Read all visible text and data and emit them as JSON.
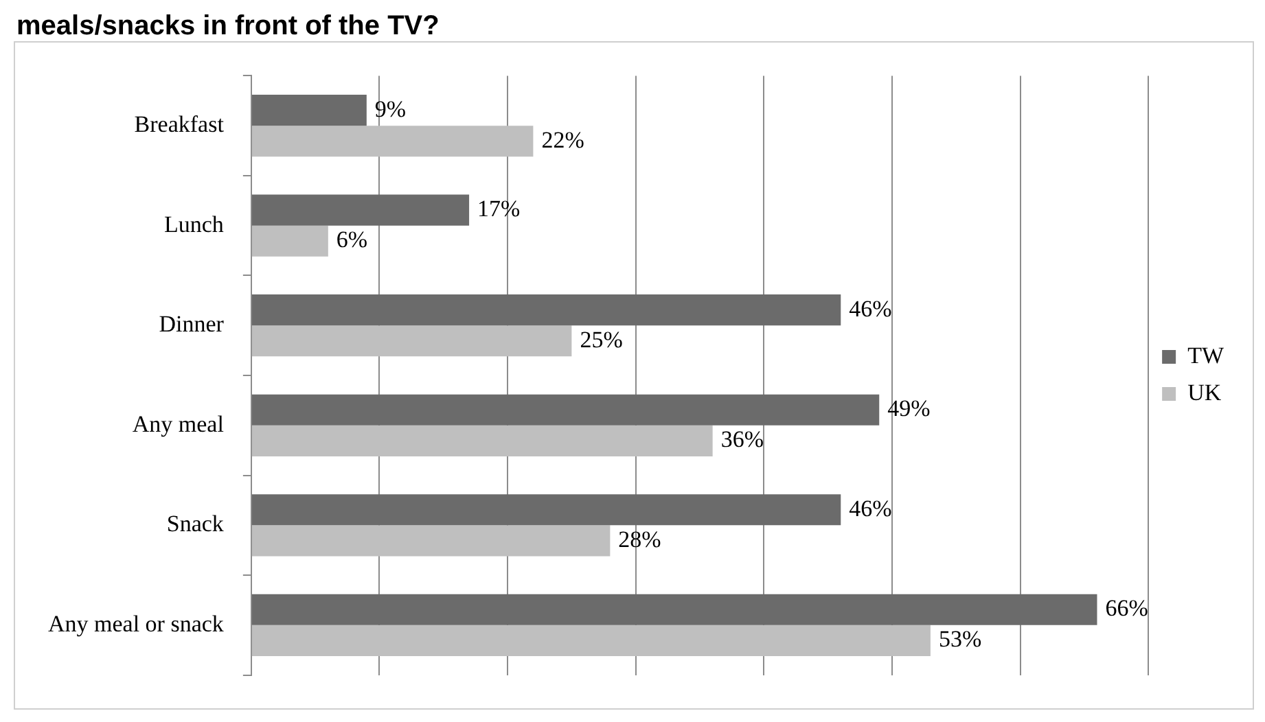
{
  "chart_data": {
    "type": "bar",
    "orientation": "horizontal",
    "title": "meals/snacks in front of the TV?",
    "categories": [
      "Breakfast",
      "Lunch",
      "Dinner",
      "Any meal",
      "Snack",
      "Any meal or snack"
    ],
    "series": [
      {
        "name": "TW",
        "color": "#6b6b6b",
        "values": [
          9,
          17,
          46,
          49,
          46,
          66
        ],
        "value_labels": [
          "9%",
          "17%",
          "46%",
          "49%",
          "46%",
          "66%"
        ]
      },
      {
        "name": "UK",
        "color": "#bfbfbf",
        "values": [
          22,
          6,
          25,
          36,
          28,
          53
        ],
        "value_labels": [
          "22%",
          "6%",
          "25%",
          "36%",
          "28%",
          "53%"
        ]
      }
    ],
    "grid": "x",
    "legend": "right",
    "tick_labels": "y"
  }
}
